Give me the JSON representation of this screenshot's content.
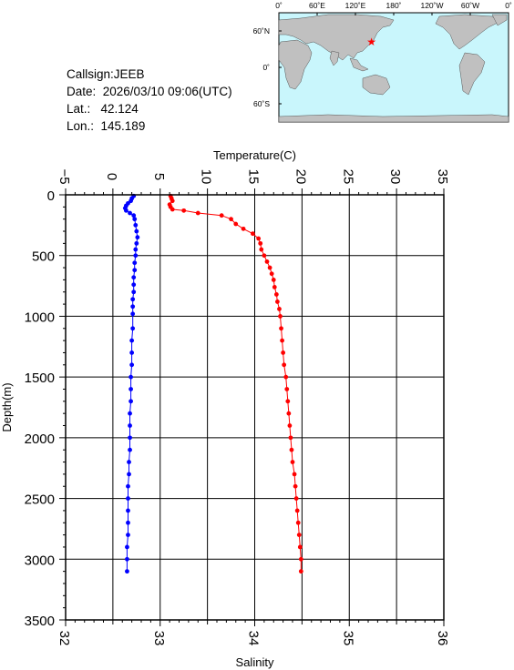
{
  "info": {
    "callsign": "Callsign:JEEB",
    "date": "Date:  2026/03/10 09:06(UTC)",
    "lat": "Lat.:   42.124",
    "lon": "Lon.:  145.189"
  },
  "map": {
    "lon_labels": [
      "0˚",
      "60˚E",
      "120˚E",
      "180˚",
      "120˚W",
      "60˚W",
      "0˚"
    ],
    "lat_labels": [
      "60˚N",
      "0˚",
      "60˚S"
    ],
    "marker": {
      "lat": 42.124,
      "lon": 145.189,
      "color": "#ff0000"
    },
    "ocean_color": "#c9f6fc",
    "land_color": "#c0c0c0"
  },
  "chart_data": {
    "type": "scatter",
    "title": "",
    "ylabel": "Depth(m)",
    "ylim": [
      0,
      3500
    ],
    "yticks": [
      0,
      500,
      1000,
      1500,
      2000,
      2500,
      3000,
      3500
    ],
    "y_inverted": true,
    "grid": true,
    "top_axis": {
      "label": "Temperature(C)",
      "range": [
        -5,
        35
      ],
      "ticks": [
        -5,
        0,
        5,
        10,
        15,
        20,
        25,
        30,
        35
      ]
    },
    "bottom_axis": {
      "label": "Salinity",
      "range": [
        32,
        36
      ],
      "ticks": [
        32,
        33,
        34,
        35,
        36
      ]
    },
    "series": [
      {
        "axis": "top",
        "color": "#ff0000",
        "points": [
          [
            6.1,
            10
          ],
          [
            6.2,
            30
          ],
          [
            6.3,
            50
          ],
          [
            6.0,
            80
          ],
          [
            6.1,
            100
          ],
          [
            6.3,
            120
          ],
          [
            7.5,
            130
          ],
          [
            9.0,
            150
          ],
          [
            11.5,
            170
          ],
          [
            12.5,
            200
          ],
          [
            13.0,
            240
          ],
          [
            13.8,
            280
          ],
          [
            14.8,
            320
          ],
          [
            15.4,
            360
          ],
          [
            15.6,
            400
          ],
          [
            15.7,
            450
          ],
          [
            16.0,
            500
          ],
          [
            16.3,
            550
          ],
          [
            16.6,
            600
          ],
          [
            16.8,
            650
          ],
          [
            17.0,
            700
          ],
          [
            17.1,
            760
          ],
          [
            17.3,
            820
          ],
          [
            17.4,
            880
          ],
          [
            17.6,
            940
          ],
          [
            17.7,
            1000
          ],
          [
            17.8,
            1100
          ],
          [
            17.9,
            1200
          ],
          [
            18.0,
            1300
          ],
          [
            18.1,
            1400
          ],
          [
            18.3,
            1500
          ],
          [
            18.4,
            1600
          ],
          [
            18.5,
            1700
          ],
          [
            18.6,
            1800
          ],
          [
            18.7,
            1900
          ],
          [
            18.8,
            2000
          ],
          [
            18.9,
            2100
          ],
          [
            19.0,
            2200
          ],
          [
            19.2,
            2300
          ],
          [
            19.3,
            2400
          ],
          [
            19.4,
            2500
          ],
          [
            19.5,
            2600
          ],
          [
            19.6,
            2700
          ],
          [
            19.7,
            2800
          ],
          [
            19.8,
            2900
          ],
          [
            19.9,
            3000
          ],
          [
            19.9,
            3100
          ]
        ]
      },
      {
        "axis": "bottom",
        "color": "#0000ff",
        "points": [
          [
            32.72,
            10
          ],
          [
            32.7,
            30
          ],
          [
            32.69,
            50
          ],
          [
            32.66,
            70
          ],
          [
            32.64,
            90
          ],
          [
            32.63,
            110
          ],
          [
            32.64,
            130
          ],
          [
            32.68,
            150
          ],
          [
            32.72,
            170
          ],
          [
            32.73,
            200
          ],
          [
            32.74,
            250
          ],
          [
            32.75,
            300
          ],
          [
            32.76,
            350
          ],
          [
            32.75,
            400
          ],
          [
            32.74,
            450
          ],
          [
            32.74,
            500
          ],
          [
            32.73,
            560
          ],
          [
            32.73,
            620
          ],
          [
            32.72,
            680
          ],
          [
            32.72,
            740
          ],
          [
            32.72,
            800
          ],
          [
            32.71,
            860
          ],
          [
            32.71,
            920
          ],
          [
            32.71,
            980
          ],
          [
            32.71,
            1100
          ],
          [
            32.7,
            1200
          ],
          [
            32.7,
            1300
          ],
          [
            32.7,
            1400
          ],
          [
            32.69,
            1500
          ],
          [
            32.69,
            1600
          ],
          [
            32.69,
            1700
          ],
          [
            32.68,
            1800
          ],
          [
            32.68,
            1900
          ],
          [
            32.68,
            2000
          ],
          [
            32.68,
            2100
          ],
          [
            32.67,
            2200
          ],
          [
            32.67,
            2300
          ],
          [
            32.66,
            2400
          ],
          [
            32.66,
            2500
          ],
          [
            32.66,
            2600
          ],
          [
            32.66,
            2700
          ],
          [
            32.66,
            2800
          ],
          [
            32.65,
            2900
          ],
          [
            32.65,
            3000
          ],
          [
            32.65,
            3100
          ]
        ]
      }
    ]
  }
}
